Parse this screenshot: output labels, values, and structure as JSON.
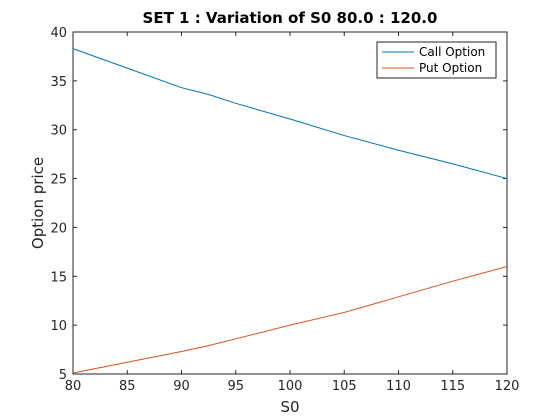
{
  "chart_data": {
    "type": "line",
    "title": "SET 1 : Variation of S0 80.0 : 120.0",
    "xlabel": "S0",
    "ylabel": "Option price",
    "xlim": [
      80,
      120
    ],
    "ylim": [
      5,
      40
    ],
    "xticks": [
      80,
      85,
      90,
      95,
      100,
      105,
      110,
      115,
      120
    ],
    "yticks": [
      5,
      10,
      15,
      20,
      25,
      30,
      35,
      40
    ],
    "grid": false,
    "legend_position": "top-right",
    "series": [
      {
        "name": "Call Option",
        "color": "#0072BD",
        "x": [
          80,
          85,
          90,
          92.5,
          95,
          100,
          105,
          110,
          115,
          120
        ],
        "y": [
          38.3,
          36.3,
          34.3,
          33.6,
          32.7,
          31.1,
          29.4,
          27.9,
          26.5,
          25.0
        ]
      },
      {
        "name": "Put Option",
        "color": "#D95319",
        "x": [
          80,
          85,
          90,
          92.5,
          95,
          100,
          105,
          110,
          115,
          120
        ],
        "y": [
          5.1,
          6.2,
          7.3,
          7.9,
          8.6,
          10.0,
          11.3,
          12.9,
          14.5,
          16.0
        ]
      }
    ]
  }
}
